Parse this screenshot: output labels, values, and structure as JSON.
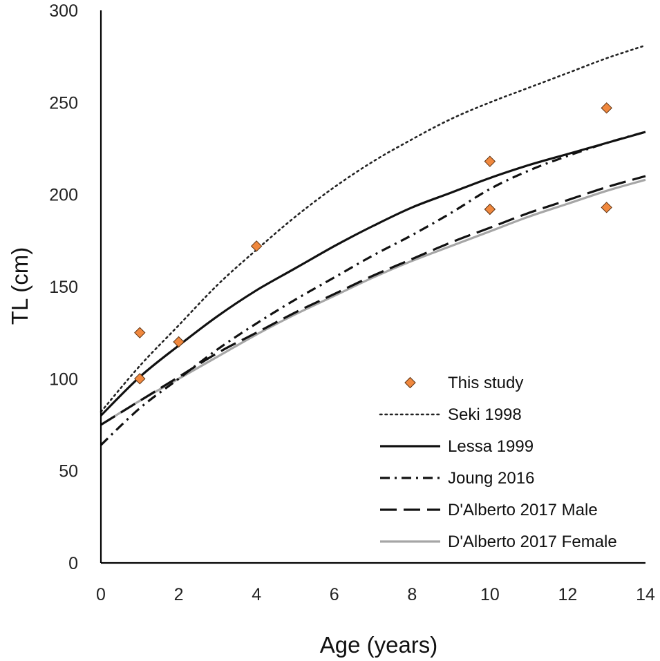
{
  "chart_data": {
    "type": "line",
    "title": "",
    "xlabel": "Age (years)",
    "ylabel": "TL (cm)",
    "xlim": [
      0,
      14
    ],
    "ylim": [
      0,
      300
    ],
    "xticks": [
      0,
      2,
      4,
      6,
      8,
      10,
      12,
      14
    ],
    "yticks": [
      0,
      50,
      100,
      150,
      200,
      250,
      300
    ],
    "grid": false,
    "legend_position": "bottom-right",
    "series": [
      {
        "name": "This study",
        "kind": "scatter",
        "marker": "diamond",
        "color": "#f0883e",
        "points": [
          [
            1,
            125
          ],
          [
            1,
            100
          ],
          [
            2,
            120
          ],
          [
            4,
            172
          ],
          [
            10,
            218
          ],
          [
            10,
            192
          ],
          [
            13,
            247
          ],
          [
            13,
            193
          ]
        ]
      },
      {
        "name": "Seki 1998",
        "kind": "line",
        "dash": "dotted",
        "color": "#222222",
        "x": [
          0,
          1,
          2,
          3,
          4,
          5,
          6,
          7,
          8,
          9,
          10,
          11,
          12,
          13,
          14
        ],
        "y": [
          82,
          107,
          129,
          151,
          170,
          188,
          204,
          218,
          230,
          241,
          250,
          258,
          266,
          274,
          281
        ]
      },
      {
        "name": "Lessa 1999",
        "kind": "line",
        "dash": "solid",
        "color": "#111111",
        "x": [
          0,
          1,
          2,
          3,
          4,
          5,
          6,
          7,
          8,
          9,
          10,
          11,
          12,
          13,
          14
        ],
        "y": [
          80,
          101,
          118,
          134,
          148,
          160,
          172,
          183,
          193,
          201,
          209,
          216,
          222,
          228,
          234
        ]
      },
      {
        "name": "Joung 2016",
        "kind": "line",
        "dash": "dash-dot",
        "color": "#111111",
        "x": [
          0,
          1,
          2,
          3,
          4,
          5,
          6,
          7,
          8,
          9,
          10,
          11,
          12,
          13,
          14
        ],
        "y": [
          64,
          84,
          100,
          116,
          130,
          143,
          155,
          167,
          178,
          190,
          203,
          213,
          221,
          228,
          234
        ]
      },
      {
        "name": "D'Alberto 2017 Male",
        "kind": "line",
        "dash": "long-dash",
        "color": "#111111",
        "x": [
          0,
          1,
          2,
          3,
          4,
          5,
          6,
          7,
          8,
          9,
          10,
          11,
          12,
          13,
          14
        ],
        "y": [
          75,
          88,
          101,
          114,
          125,
          136,
          146,
          156,
          165,
          174,
          182,
          190,
          197,
          204,
          210
        ]
      },
      {
        "name": "D'Alberto 2017 Female",
        "kind": "line",
        "dash": "solid",
        "color": "#a6a6a6",
        "x": [
          0,
          1,
          2,
          3,
          4,
          5,
          6,
          7,
          8,
          9,
          10,
          11,
          12,
          13,
          14
        ],
        "y": [
          75,
          88,
          100,
          112,
          124,
          135,
          145,
          155,
          164,
          172,
          180,
          188,
          195,
          202,
          208
        ]
      }
    ]
  }
}
